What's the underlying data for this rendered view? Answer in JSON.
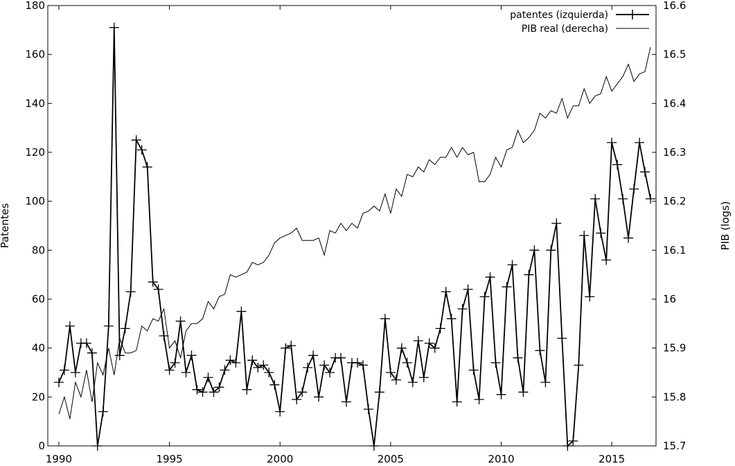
{
  "chart_data": {
    "type": "line",
    "title": "",
    "xlim": [
      1989.5,
      2017.0
    ],
    "x_ticks": [
      "1990",
      "1995",
      "2000",
      "2005",
      "2010",
      "2015"
    ],
    "y_left": {
      "label": "Patentes",
      "lim": [
        0,
        180
      ],
      "ticks": [
        "0",
        "20",
        "40",
        "60",
        "80",
        "100",
        "120",
        "140",
        "160",
        "180"
      ]
    },
    "y_right": {
      "label": "PIB (logs)",
      "lim": [
        15.7,
        16.6
      ],
      "ticks": [
        "15.7",
        "15.8",
        "15.9",
        "16",
        "16.1",
        "16.2",
        "16.3",
        "16.4",
        "16.5",
        "16.6"
      ]
    },
    "legend_position": "top-right",
    "grid": false,
    "series": [
      {
        "name": "patentes  (izquierda)",
        "axis": "left",
        "marker": "cross",
        "x": [
          1990.0,
          1990.25,
          1990.5,
          1990.75,
          1991.0,
          1991.25,
          1991.5,
          1991.75,
          1992.0,
          1992.25,
          1992.5,
          1992.75,
          1993.0,
          1993.25,
          1993.5,
          1993.75,
          1994.0,
          1994.25,
          1994.5,
          1994.75,
          1995.0,
          1995.25,
          1995.5,
          1995.75,
          1996.0,
          1996.25,
          1996.5,
          1996.75,
          1997.0,
          1997.25,
          1997.5,
          1997.75,
          1998.0,
          1998.25,
          1998.5,
          1998.75,
          1999.0,
          1999.25,
          1999.5,
          1999.75,
          2000.0,
          2000.25,
          2000.5,
          2000.75,
          2001.0,
          2001.25,
          2001.5,
          2001.75,
          2002.0,
          2002.25,
          2002.5,
          2002.75,
          2003.0,
          2003.25,
          2003.5,
          2003.75,
          2004.0,
          2004.25,
          2004.5,
          2004.75,
          2005.0,
          2005.25,
          2005.5,
          2005.75,
          2006.0,
          2006.25,
          2006.5,
          2006.75,
          2007.0,
          2007.25,
          2007.5,
          2007.75,
          2008.0,
          2008.25,
          2008.5,
          2008.75,
          2009.0,
          2009.25,
          2009.5,
          2009.75,
          2010.0,
          2010.25,
          2010.5,
          2010.75,
          2011.0,
          2011.25,
          2011.5,
          2011.75,
          2012.0,
          2012.25,
          2012.5,
          2012.75,
          2013.0,
          2013.25,
          2013.5,
          2013.75,
          2014.0,
          2014.25,
          2014.5,
          2014.75,
          2015.0,
          2015.25,
          2015.5,
          2015.75,
          2016.0,
          2016.25,
          2016.5,
          2016.75
        ],
        "values": [
          26,
          31,
          49,
          30,
          42,
          42,
          38,
          0,
          14,
          49,
          171,
          37,
          48,
          63,
          125,
          121,
          114,
          67,
          64,
          45,
          31,
          34,
          51,
          30,
          37,
          23,
          22,
          28,
          22,
          24,
          31,
          35,
          34,
          55,
          23,
          35,
          32,
          33,
          30,
          25,
          14,
          40,
          41,
          19,
          22,
          32,
          37,
          20,
          33,
          30,
          36,
          36,
          18,
          34,
          34,
          33,
          15,
          0,
          22,
          52,
          30,
          27,
          40,
          34,
          26,
          43,
          28,
          42,
          40,
          48,
          63,
          52,
          18,
          56,
          64,
          31,
          19,
          61,
          69,
          34,
          21,
          65,
          74,
          36,
          22,
          70,
          80,
          39,
          26,
          80,
          91,
          44,
          0,
          2,
          33,
          86,
          61,
          101,
          87,
          76,
          124,
          115,
          101,
          85,
          105,
          124,
          112,
          101
        ]
      },
      {
        "name": "PIB real (derecha)",
        "axis": "right",
        "marker": "none",
        "x": [
          1990.0,
          1990.25,
          1990.5,
          1990.75,
          1991.0,
          1991.25,
          1991.5,
          1991.75,
          1992.0,
          1992.25,
          1992.5,
          1992.75,
          1993.0,
          1993.25,
          1993.5,
          1993.75,
          1994.0,
          1994.25,
          1994.5,
          1994.75,
          1995.0,
          1995.25,
          1995.5,
          1995.75,
          1996.0,
          1996.25,
          1996.5,
          1996.75,
          1997.0,
          1997.25,
          1997.5,
          1997.75,
          1998.0,
          1998.25,
          1998.5,
          1998.75,
          1999.0,
          1999.25,
          1999.5,
          1999.75,
          2000.0,
          2000.25,
          2000.5,
          2000.75,
          2001.0,
          2001.25,
          2001.5,
          2001.75,
          2002.0,
          2002.25,
          2002.5,
          2002.75,
          2003.0,
          2003.25,
          2003.5,
          2003.75,
          2004.0,
          2004.25,
          2004.5,
          2004.75,
          2005.0,
          2005.25,
          2005.5,
          2005.75,
          2006.0,
          2006.25,
          2006.5,
          2006.75,
          2007.0,
          2007.25,
          2007.5,
          2007.75,
          2008.0,
          2008.25,
          2008.5,
          2008.75,
          2009.0,
          2009.25,
          2009.5,
          2009.75,
          2010.0,
          2010.25,
          2010.5,
          2010.75,
          2011.0,
          2011.25,
          2011.5,
          2011.75,
          2012.0,
          2012.25,
          2012.5,
          2012.75,
          2013.0,
          2013.25,
          2013.5,
          2013.75,
          2014.0,
          2014.25,
          2014.5,
          2014.75,
          2015.0,
          2015.25,
          2015.5,
          2015.75,
          2016.0,
          2016.25,
          2016.5,
          2016.75
        ],
        "values": [
          15.765,
          15.8,
          15.755,
          15.83,
          15.8,
          15.855,
          15.79,
          15.87,
          15.845,
          15.9,
          15.845,
          15.92,
          15.89,
          15.89,
          15.895,
          15.945,
          15.935,
          15.96,
          15.955,
          15.98,
          15.9,
          15.915,
          15.88,
          15.935,
          15.95,
          15.95,
          15.96,
          15.995,
          15.98,
          16.005,
          16.01,
          16.05,
          16.045,
          16.05,
          16.055,
          16.075,
          16.07,
          16.075,
          16.09,
          16.115,
          16.125,
          16.13,
          16.135,
          16.145,
          16.12,
          16.12,
          16.12,
          16.125,
          16.09,
          16.14,
          16.135,
          16.155,
          16.14,
          16.155,
          16.145,
          16.175,
          16.18,
          16.19,
          16.18,
          16.215,
          16.175,
          16.225,
          16.21,
          16.255,
          16.25,
          16.27,
          16.26,
          16.285,
          16.275,
          16.29,
          16.29,
          16.31,
          16.29,
          16.31,
          16.295,
          16.3,
          16.24,
          16.24,
          16.255,
          16.29,
          16.27,
          16.305,
          16.31,
          16.345,
          16.32,
          16.33,
          16.345,
          16.38,
          16.37,
          16.385,
          16.38,
          16.41,
          16.37,
          16.395,
          16.395,
          16.43,
          16.4,
          16.415,
          16.42,
          16.455,
          16.425,
          16.44,
          16.455,
          16.48,
          16.445,
          16.46,
          16.465,
          16.515
        ]
      }
    ]
  }
}
